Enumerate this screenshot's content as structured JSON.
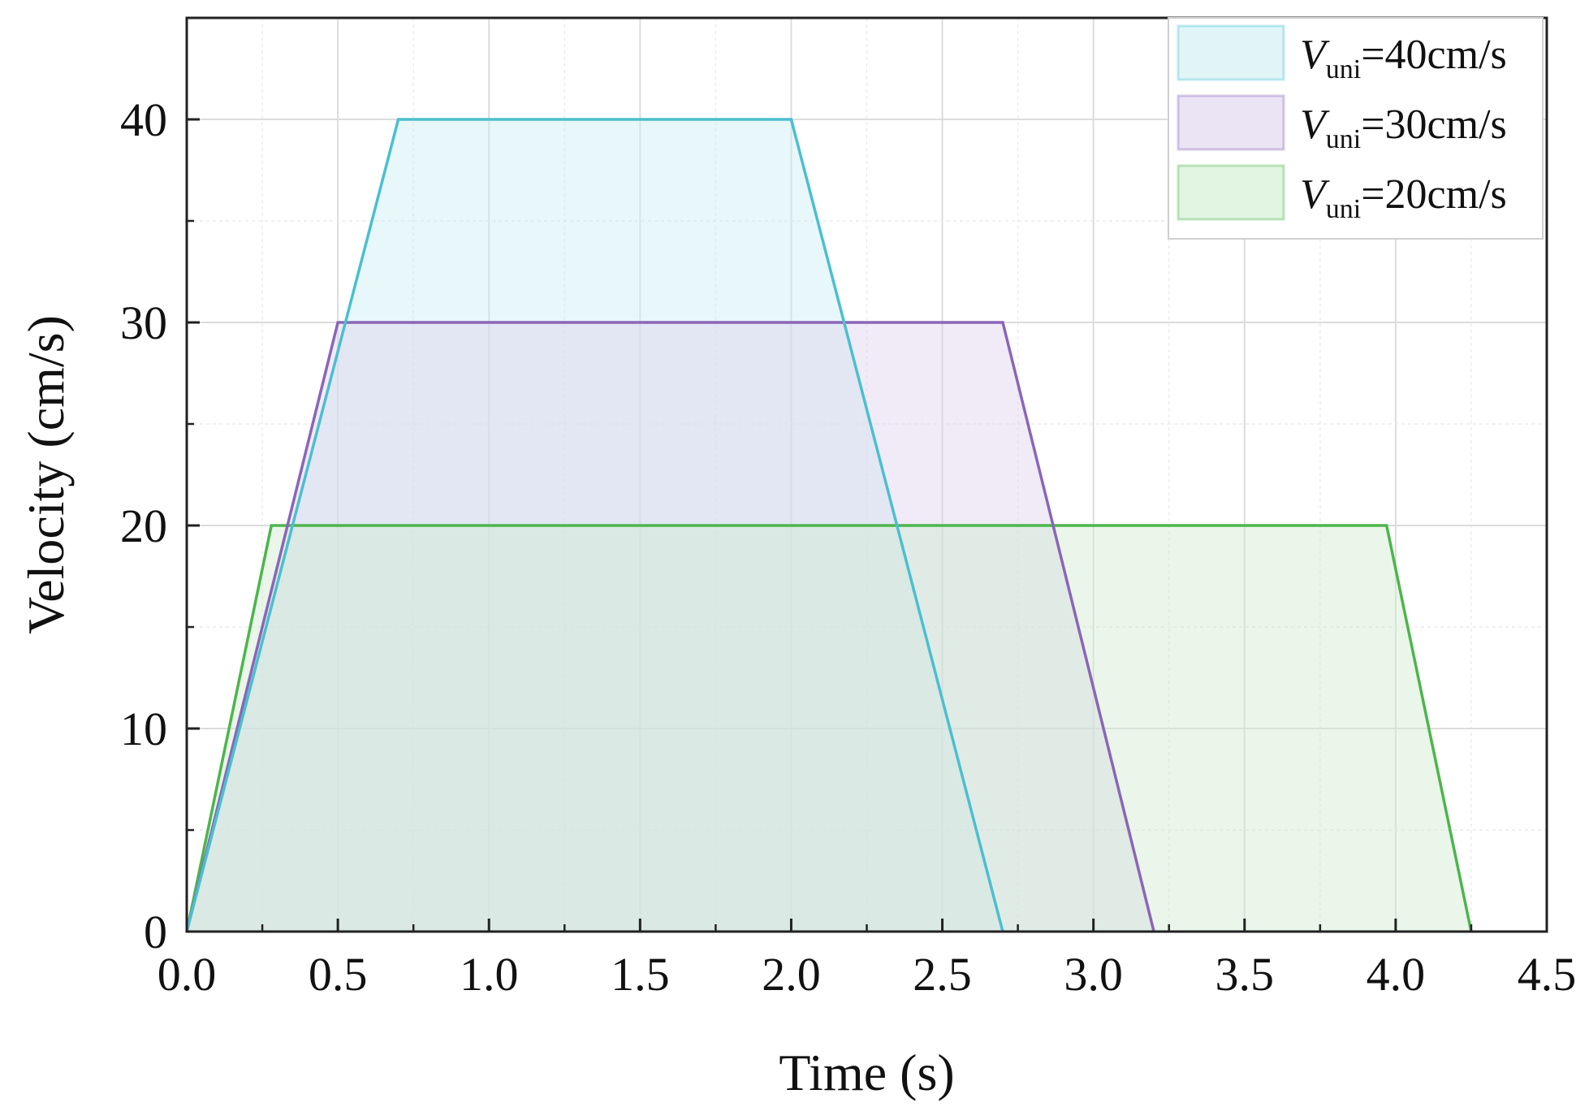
{
  "chart_data": {
    "type": "area",
    "xlabel": "Time (s)",
    "ylabel": "Velocity (cm/s)",
    "xlim": [
      0,
      4.5
    ],
    "ylim": [
      0,
      45
    ],
    "xticks": [
      "0.0",
      "0.5",
      "1.0",
      "1.5",
      "2.0",
      "2.5",
      "3.0",
      "3.5",
      "4.0",
      "4.5"
    ],
    "yticks": [
      "0",
      "10",
      "20",
      "30",
      "40"
    ],
    "grid": true,
    "legend_position": "top-right",
    "series": [
      {
        "name": "Vuni=40cm/s",
        "legend": {
          "var": "V",
          "sub": "uni",
          "rest": "=40cm/s"
        },
        "color": "#4bbfd0",
        "fill": "#cdeef3",
        "x": [
          0,
          0.7,
          2.0,
          2.7
        ],
        "y": [
          0,
          40,
          40,
          0
        ]
      },
      {
        "name": "Vuni=30cm/s",
        "legend": {
          "var": "V",
          "sub": "uni",
          "rest": "=30cm/s"
        },
        "color": "#8a66b8",
        "fill": "#ddd2ee",
        "x": [
          0,
          0.5,
          2.7,
          3.2
        ],
        "y": [
          0,
          30,
          30,
          0
        ]
      },
      {
        "name": "Vuni=20cm/s",
        "legend": {
          "var": "V",
          "sub": "uni",
          "rest": "=20cm/s"
        },
        "color": "#4db54d",
        "fill": "#cfeccf",
        "x": [
          0,
          0.28,
          3.97,
          4.25
        ],
        "y": [
          0,
          20,
          20,
          0
        ]
      }
    ]
  }
}
